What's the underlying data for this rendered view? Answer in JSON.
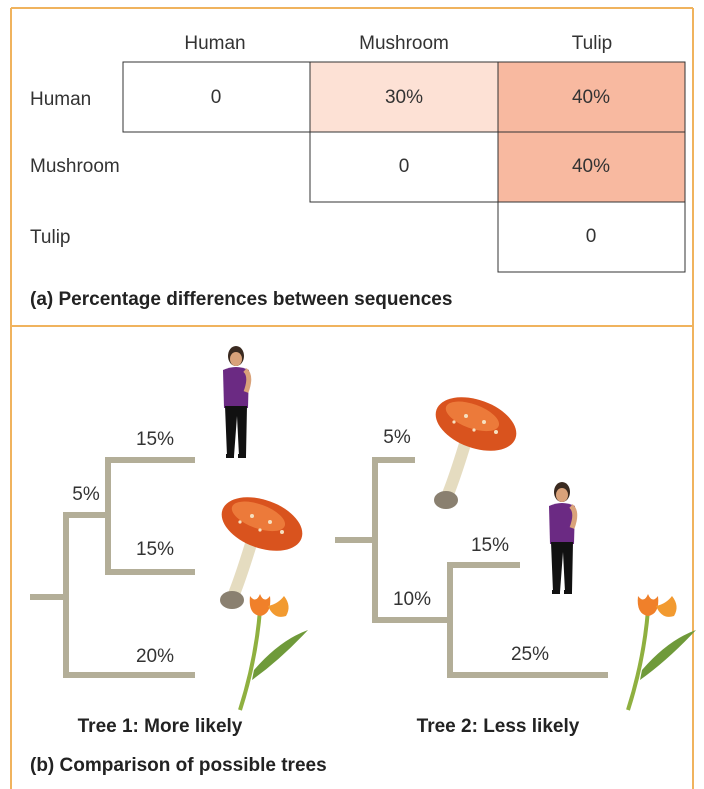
{
  "table": {
    "column_headers": [
      "Human",
      "Mushroom",
      "Tulip"
    ],
    "rows": [
      {
        "label": "Human",
        "cells": [
          "0",
          "30%",
          "40%"
        ]
      },
      {
        "label": "Mushroom",
        "cells": [
          "0",
          "40%"
        ]
      },
      {
        "label": "Tulip",
        "cells": [
          "0"
        ]
      }
    ],
    "caption": "(a) Percentage differences between sequences"
  },
  "trees": [
    {
      "title": "Tree 1: More likely",
      "branch_labels": [
        "15%",
        "5%",
        "15%",
        "20%"
      ]
    },
    {
      "title": "Tree 2: Less likely",
      "branch_labels": [
        "5%",
        "15%",
        "10%",
        "25%"
      ]
    }
  ],
  "caption": "(b) Comparison of possible trees"
}
